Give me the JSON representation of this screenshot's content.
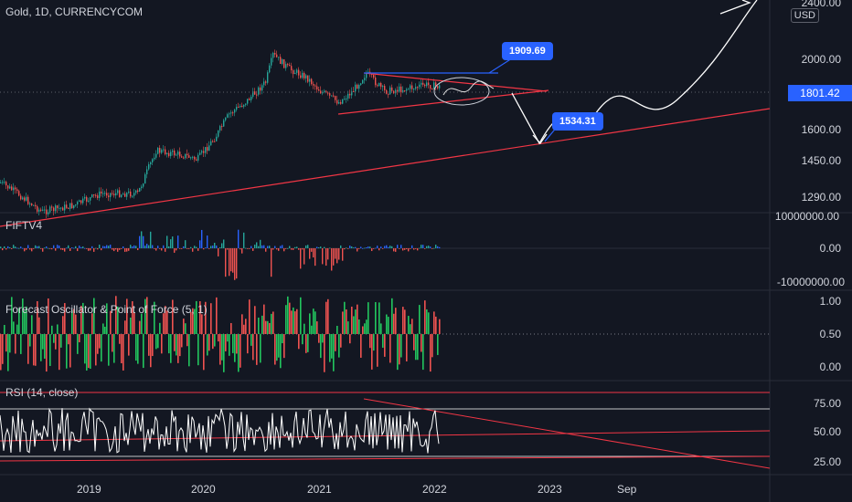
{
  "symbol_title": "Gold, 1D, CURRENCYCOM",
  "currency_badge": "USD",
  "last_price_tag": "1801.42",
  "callouts": {
    "upper": "1909.69",
    "lower": "1534.31"
  },
  "price_axis": [
    "2400.00",
    "2000.00",
    "1800.00",
    "1600.00",
    "1450.00",
    "1290.00"
  ],
  "panes": {
    "fiftv4": {
      "title": "FIFTV4",
      "axis": [
        "10000000.00",
        "0.00",
        "-10000000.00"
      ]
    },
    "forecast": {
      "title": "Forecast Oscillator & Point of Force (5, 1)",
      "axis": [
        "1.00",
        "0.50",
        "0.00"
      ]
    },
    "rsi": {
      "title": "RSI (14, close)",
      "axis": [
        "75.00",
        "50.00",
        "25.00"
      ]
    }
  },
  "time_axis": [
    "2019",
    "2020",
    "2021",
    "2022",
    "2023",
    "Sep"
  ],
  "colors": {
    "background": "#131722",
    "candle_up": "#26a69a",
    "candle_down": "#ef5350",
    "trendline": "#f23645",
    "channel_blue": "#2962ff",
    "osc_up": "#22c55e",
    "osc_down": "#ef5350",
    "rsi_line": "#ffffff"
  }
}
